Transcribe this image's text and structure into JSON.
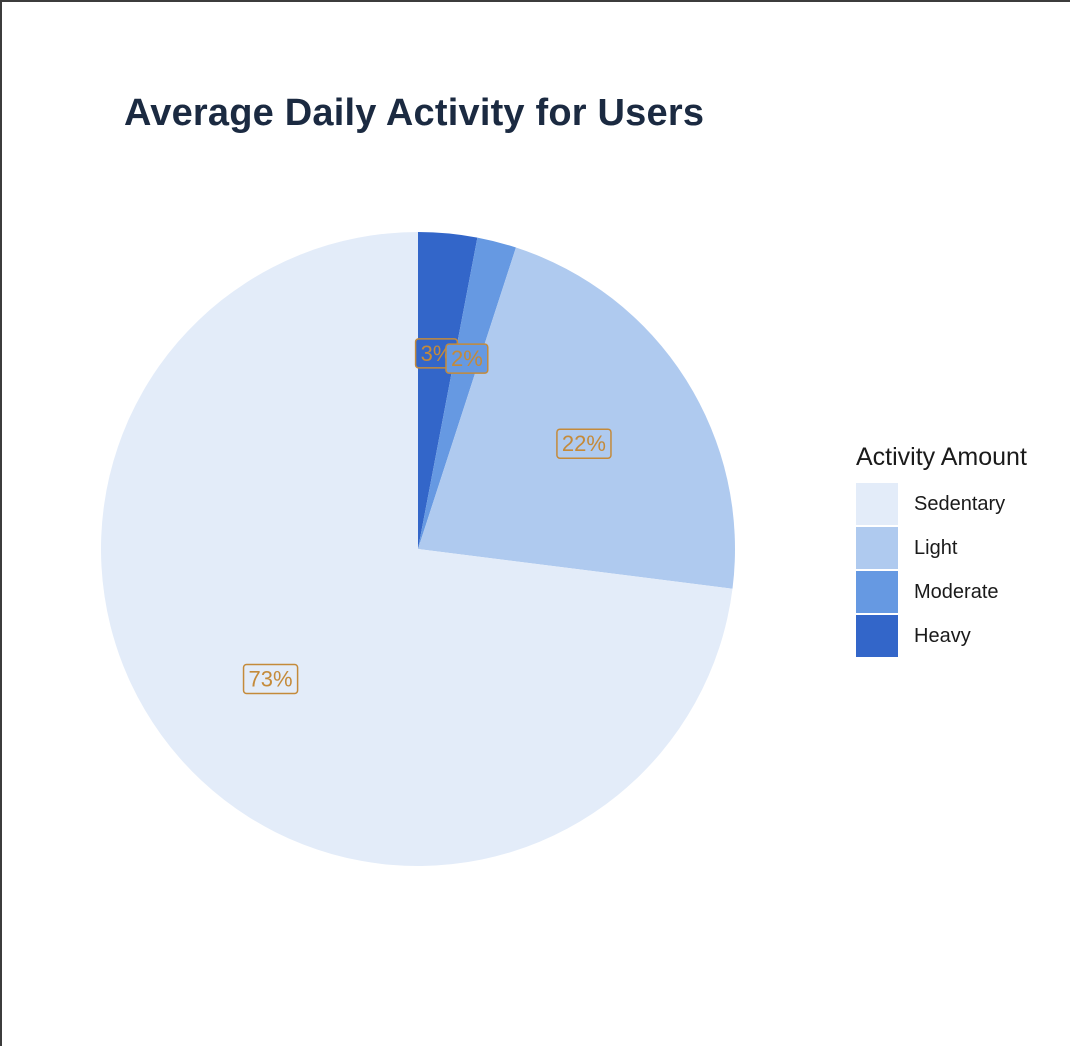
{
  "chart_data": {
    "type": "pie",
    "title": "Average Daily Activity for Users",
    "legend_title": "Activity Amount",
    "legend_position": "right",
    "start_angle": "12 o'clock",
    "direction": "clockwise",
    "slices": [
      {
        "name": "Heavy",
        "value": 3,
        "label": "3%",
        "color": "#3366c9"
      },
      {
        "name": "Moderate",
        "value": 2,
        "label": "2%",
        "color": "#6699e2"
      },
      {
        "name": "Light",
        "value": 22,
        "label": "22%",
        "color": "#afcaef"
      },
      {
        "name": "Sedentary",
        "value": 73,
        "label": "73%",
        "color": "#e3ecf9"
      }
    ],
    "legend": [
      {
        "name": "Sedentary",
        "color": "#e3ecf9"
      },
      {
        "name": "Light",
        "color": "#afcaef"
      },
      {
        "name": "Moderate",
        "color": "#6699e2"
      },
      {
        "name": "Heavy",
        "color": "#3366c9"
      }
    ],
    "label_text_color": "#c48a3a"
  }
}
